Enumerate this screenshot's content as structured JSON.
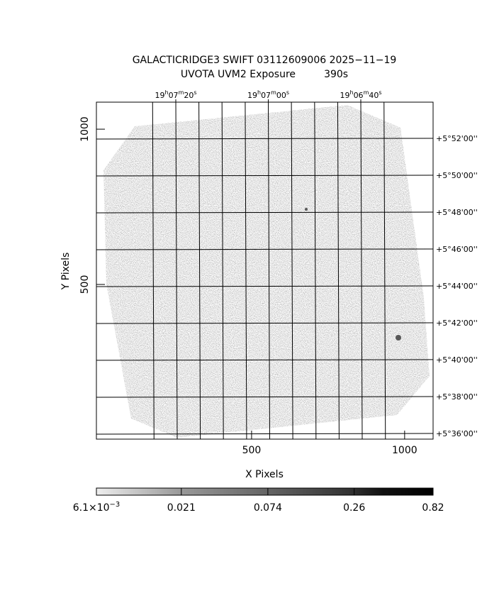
{
  "chart_data": {
    "type": "image",
    "title": "GALACTICRIDGE3 SWIFT 03112609006 2025−11−19",
    "subtitle": "UVOTA UVM2 Exposure         390s",
    "xlabel": "X Pixels",
    "ylabel": "Y Pixels",
    "xlim": [
      -7,
      1093
    ],
    "ylim": [
      2,
      1087
    ],
    "xticks": [
      500,
      1000
    ],
    "yticks": [
      500,
      1000
    ],
    "ralim": [
      286.9048,
      286.6016
    ],
    "raticks": [
      {
        "value": 286.8333,
        "label": [
          "19",
          "h",
          "07",
          "m",
          "20",
          "s"
        ]
      },
      {
        "value": 286.75,
        "label": [
          "19",
          "h",
          "07",
          "m",
          "00",
          "s"
        ]
      },
      {
        "value": 286.6667,
        "label": [
          "19",
          "h",
          "06",
          "m",
          "40",
          "s"
        ]
      }
    ],
    "ra_gridlines": [
      286.8542,
      286.8333,
      286.8125,
      286.7917,
      286.7708,
      286.75,
      286.7292,
      286.7083,
      286.6875,
      286.6667,
      286.6458
    ],
    "declim": [
      5.5955,
      5.9
    ],
    "decticks": [
      {
        "value": 5.8667,
        "label": "+5°52'00''"
      },
      {
        "value": 5.8333,
        "label": "+5°50'00''"
      },
      {
        "value": 5.8,
        "label": "+5°48'00''"
      },
      {
        "value": 5.7667,
        "label": "+5°46'00''"
      },
      {
        "value": 5.7333,
        "label": "+5°44'00''"
      },
      {
        "value": 5.7,
        "label": "+5°42'00''"
      },
      {
        "value": 5.6667,
        "label": "+5°40'00''"
      },
      {
        "value": 5.6333,
        "label": "+5°38'00''"
      },
      {
        "value": 5.6,
        "label": "+5°36'00''"
      }
    ],
    "colorbar": {
      "log": true,
      "clim": [
        0.0061,
        0.82
      ],
      "ticks": [
        {
          "value": 0.0061,
          "label": [
            "6.1×10",
            "−3"
          ]
        },
        {
          "value": 0.021,
          "label": [
            "0.021"
          ]
        },
        {
          "value": 0.074,
          "label": [
            "0.074"
          ]
        },
        {
          "value": 0.26,
          "label": [
            "0.26"
          ]
        },
        {
          "value": 0.82,
          "label": [
            "0.82"
          ]
        }
      ]
    }
  }
}
